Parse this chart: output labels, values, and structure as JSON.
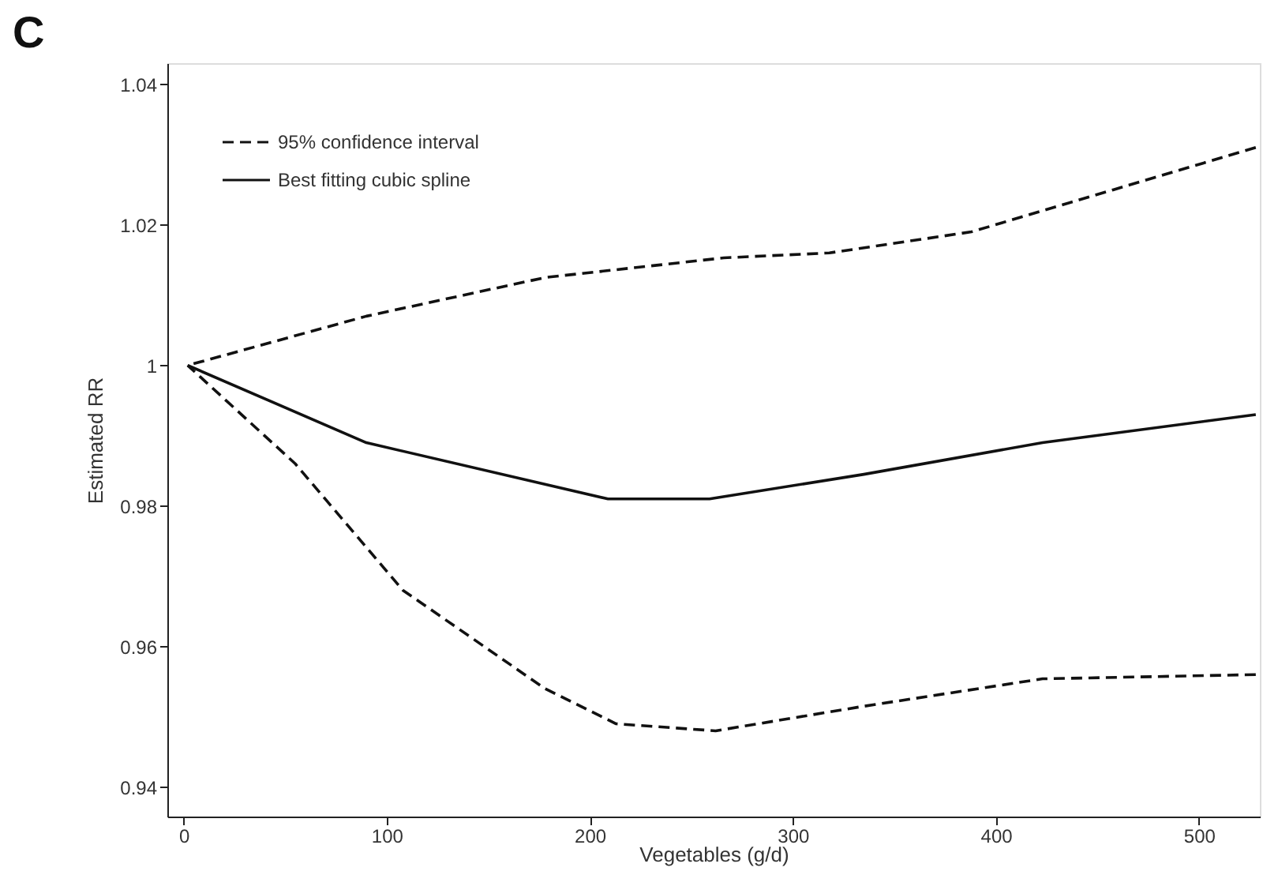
{
  "chart_data": {
    "type": "line",
    "title": "C",
    "xlabel": "Vegetables (g/d)",
    "ylabel": "Estimated RR",
    "xlim": [
      -8,
      530
    ],
    "xticks": [
      0,
      100,
      200,
      300,
      400,
      500
    ],
    "ylim": [
      0.9358,
      1.043
    ],
    "yticks": [
      0.94,
      0.96,
      0.98,
      1,
      1.02,
      1.04
    ],
    "grid": false,
    "legend": "top left",
    "marker": "none",
    "series": [
      {
        "name": "95% confidence interval",
        "color": "#111111",
        "line_style": "dashed",
        "x": [
          2,
          90,
          178,
          266,
          318,
          388,
          458,
          528
        ],
        "values": [
          1.0,
          1.007,
          1.0125,
          1.0153,
          1.016,
          1.019,
          1.025,
          1.031
        ]
      },
      {
        "name": "Best fitting cubic spline",
        "color": "#111111",
        "line_style": "solid",
        "x": [
          2,
          90,
          209,
          259,
          335,
          423,
          528
        ],
        "values": [
          1.0,
          0.989,
          0.981,
          0.981,
          0.9845,
          0.989,
          0.993
        ]
      },
      {
        "color": "#111111",
        "line_style": "dashed",
        "x": [
          2,
          55,
          108,
          178,
          213,
          262,
          335,
          423,
          528
        ],
        "values": [
          1.0,
          0.986,
          0.968,
          0.954,
          0.949,
          0.948,
          0.9515,
          0.9554,
          0.956
        ]
      }
    ]
  }
}
